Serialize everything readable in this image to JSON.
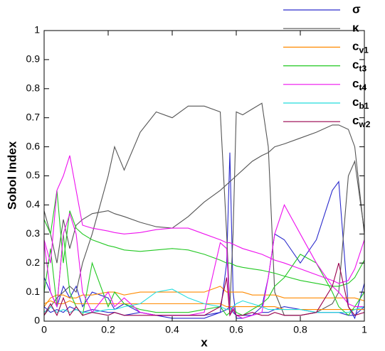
{
  "chart_data": {
    "type": "line",
    "xlabel": "x",
    "ylabel": "Sobol Index",
    "xlim": [
      0,
      1
    ],
    "ylim": [
      0,
      1
    ],
    "xticks": [
      0,
      0.2,
      0.4,
      0.6,
      0.8,
      1
    ],
    "yticks": [
      0,
      0.1,
      0.2,
      0.3,
      0.4,
      0.5,
      0.6,
      0.7,
      0.8,
      0.9,
      1
    ],
    "x": [
      0,
      0.02,
      0.04,
      0.06,
      0.08,
      0.1,
      0.12,
      0.15,
      0.2,
      0.22,
      0.25,
      0.3,
      0.35,
      0.4,
      0.45,
      0.5,
      0.55,
      0.57,
      0.58,
      0.59,
      0.6,
      0.62,
      0.65,
      0.68,
      0.7,
      0.72,
      0.75,
      0.8,
      0.85,
      0.9,
      0.92,
      0.95,
      0.97,
      1
    ],
    "series": [
      {
        "name": "σ",
        "color": "#2a2acc",
        "values": [
          [
            0.15,
            0.1,
            0.05,
            0.12,
            0.08,
            0.12,
            0.05,
            0.1,
            0.08,
            0.04,
            0.06,
            0.03,
            0.02,
            0.01,
            0.01,
            0.01,
            0.03,
            0.2,
            0.58,
            0.1,
            0.01,
            0.01,
            0.02,
            0.05,
            0.15,
            0.3,
            0.28,
            0.2,
            0.28,
            0.45,
            0.48,
            0.05,
            0.01,
            0.13
          ],
          [
            0.05,
            0.03,
            0.04,
            0.03,
            0.05,
            0.04,
            0.03,
            0.04,
            0.03,
            0.03,
            0.02,
            0.03,
            0.02,
            0.02,
            0.02,
            0.02,
            0.03,
            0.04,
            0.05,
            0.03,
            0.02,
            0.02,
            0.02,
            0.03,
            0.03,
            0.04,
            0.05,
            0.04,
            0.03,
            0.03,
            0.03,
            0.02,
            0.02,
            0.05
          ]
        ]
      },
      {
        "name": "κ",
        "color": "#555555",
        "values": [
          [
            0.02,
            0.05,
            0.08,
            0.1,
            0.12,
            0.1,
            0.2,
            0.3,
            0.5,
            0.6,
            0.52,
            0.65,
            0.72,
            0.7,
            0.74,
            0.74,
            0.72,
            0.3,
            0.05,
            0.3,
            0.72,
            0.71,
            0.73,
            0.75,
            0.6,
            0.1,
            0.02,
            0.02,
            0.03,
            0.06,
            0.1,
            0.5,
            0.55,
            0.31
          ],
          [
            0.38,
            0.3,
            0.2,
            0.35,
            0.25,
            0.33,
            0.35,
            0.37,
            0.38,
            0.37,
            0.36,
            0.34,
            0.325,
            0.32,
            0.36,
            0.41,
            0.45,
            0.47,
            0.48,
            0.49,
            0.5,
            0.52,
            0.55,
            0.57,
            0.58,
            0.6,
            0.61,
            0.63,
            0.65,
            0.675,
            0.675,
            0.66,
            0.6,
            0.3
          ]
        ]
      },
      {
        "name": "cv1",
        "color": "#ff8a00",
        "values": [
          [
            0.05,
            0.08,
            0.09,
            0.09,
            0.08,
            0.08,
            0.09,
            0.09,
            0.1,
            0.1,
            0.09,
            0.1,
            0.1,
            0.1,
            0.1,
            0.1,
            0.12,
            0.1,
            0.1,
            0.1,
            0.1,
            0.1,
            0.09,
            0.09,
            0.09,
            0.09,
            0.08,
            0.08,
            0.08,
            0.08,
            0.08,
            0.08,
            0.08,
            0.07
          ],
          [
            0.06,
            0.07,
            0.06,
            0.06,
            0.07,
            0.06,
            0.06,
            0.06,
            0.06,
            0.06,
            0.06,
            0.06,
            0.06,
            0.06,
            0.06,
            0.06,
            0.06,
            0.05,
            0.05,
            0.05,
            0.05,
            0.05,
            0.05,
            0.05,
            0.05,
            0.05,
            0.04,
            0.04,
            0.04,
            0.04,
            0.04,
            0.04,
            0.04,
            0.04
          ]
        ]
      },
      {
        "name": "ct3",
        "color": "#22c822",
        "values": [
          [
            0.35,
            0.3,
            0.45,
            0.2,
            0.38,
            0.32,
            0.3,
            0.28,
            0.26,
            0.255,
            0.245,
            0.24,
            0.245,
            0.25,
            0.245,
            0.23,
            0.21,
            0.2,
            0.2,
            0.195,
            0.19,
            0.185,
            0.18,
            0.175,
            0.17,
            0.165,
            0.155,
            0.14,
            0.13,
            0.12,
            0.12,
            0.13,
            0.15,
            0.21
          ],
          [
            0.1,
            0.25,
            0.05,
            0.3,
            0.1,
            0.05,
            0.02,
            0.2,
            0.05,
            0.1,
            0.06,
            0.04,
            0.03,
            0.03,
            0.03,
            0.04,
            0.05,
            0.02,
            0.03,
            0.05,
            0.03,
            0.02,
            0.04,
            0.06,
            0.08,
            0.12,
            0.15,
            0.23,
            0.2,
            0.1,
            0.05,
            0.02,
            0.05,
            0.1
          ]
        ]
      },
      {
        "name": "ct4",
        "color": "#ee11ee",
        "values": [
          [
            0.28,
            0.2,
            0.45,
            0.5,
            0.57,
            0.45,
            0.33,
            0.32,
            0.31,
            0.305,
            0.3,
            0.305,
            0.315,
            0.32,
            0.32,
            0.3,
            0.28,
            0.27,
            0.27,
            0.265,
            0.26,
            0.25,
            0.24,
            0.23,
            0.22,
            0.21,
            0.2,
            0.18,
            0.16,
            0.14,
            0.13,
            0.14,
            0.18,
            0.28
          ],
          [
            0.27,
            0.1,
            0.05,
            0.3,
            0.37,
            0.3,
            0.1,
            0.03,
            0.1,
            0.05,
            0.08,
            0.03,
            0.02,
            0.02,
            0.02,
            0.03,
            0.27,
            0.25,
            0.02,
            0.05,
            0.02,
            0.01,
            0.02,
            0.03,
            0.15,
            0.3,
            0.4,
            0.3,
            0.2,
            0.12,
            0.1,
            0.06,
            0.05,
            0.05
          ]
        ]
      },
      {
        "name": "cb1",
        "color": "#22dcdc",
        "values": [
          [
            0.03,
            0.05,
            0.03,
            0.04,
            0.03,
            0.04,
            0.03,
            0.03,
            0.04,
            0.04,
            0.05,
            0.06,
            0.1,
            0.11,
            0.08,
            0.06,
            0.05,
            0.04,
            0.04,
            0.05,
            0.06,
            0.07,
            0.06,
            0.05,
            0.04,
            0.04,
            0.04,
            0.04,
            0.03,
            0.03,
            0.03,
            0.03,
            0.04,
            0.05
          ]
        ]
      },
      {
        "name": "cw2",
        "color": "#99004d",
        "values": [
          [
            0.02,
            0.06,
            0.02,
            0.08,
            0.02,
            0.05,
            0.02,
            0.03,
            0.02,
            0.03,
            0.02,
            0.02,
            0.02,
            0.02,
            0.02,
            0.02,
            0.05,
            0.15,
            0.02,
            0.04,
            0.02,
            0.02,
            0.03,
            0.02,
            0.02,
            0.03,
            0.02,
            0.02,
            0.03,
            0.12,
            0.2,
            0.05,
            0.02,
            0.03
          ]
        ]
      }
    ]
  }
}
